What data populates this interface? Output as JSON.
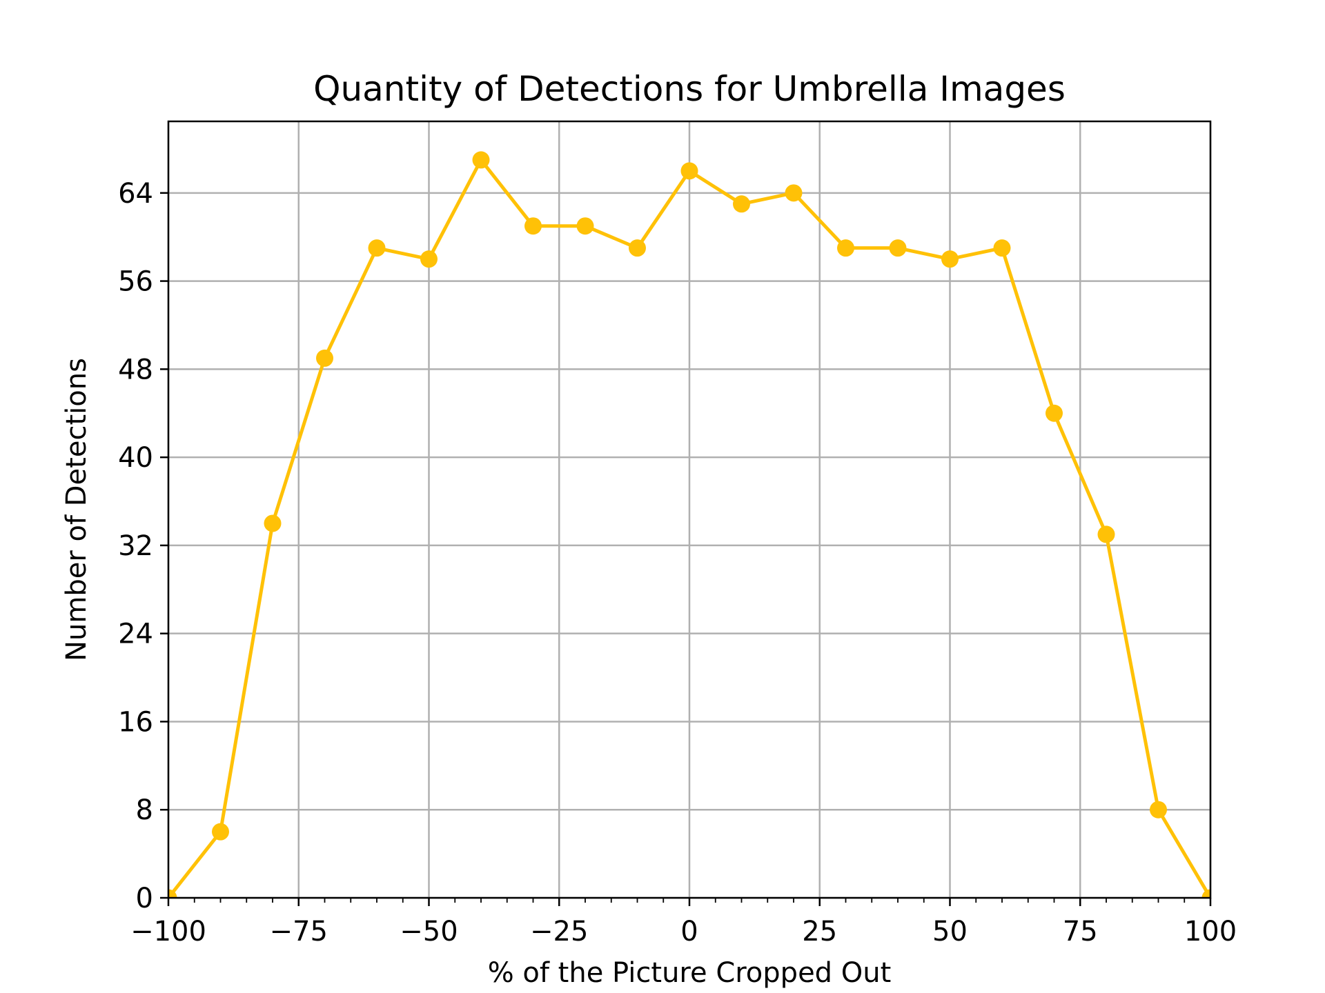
{
  "chart_data": {
    "type": "line",
    "title": "Quantity of Detections for Umbrella Images",
    "xlabel": "% of the Picture Cropped Out",
    "ylabel": "Number of Detections",
    "xlim": [
      -100,
      100
    ],
    "ylim": [
      0,
      70.5
    ],
    "xticks": [
      -100,
      -75,
      -50,
      -25,
      0,
      25,
      50,
      75,
      100
    ],
    "xtick_labels": [
      "−100",
      "−75",
      "−50",
      "−25",
      "0",
      "25",
      "50",
      "75",
      "100"
    ],
    "yticks": [
      0,
      8,
      16,
      24,
      32,
      40,
      48,
      56,
      64
    ],
    "ytick_labels": [
      "0",
      "8",
      "16",
      "24",
      "32",
      "40",
      "48",
      "56",
      "64"
    ],
    "grid": true,
    "color": "#ffc107",
    "series": [
      {
        "x": [
          -100,
          -90,
          -80,
          -70,
          -60,
          -50,
          -40,
          -30,
          -20,
          -10,
          0,
          10,
          20,
          30,
          40,
          50,
          60,
          70,
          80,
          90,
          100
        ],
        "y": [
          0,
          6,
          34,
          49,
          59,
          58,
          67,
          61,
          61,
          59,
          66,
          63,
          64,
          59,
          59,
          58,
          59,
          44,
          33,
          8,
          0
        ]
      }
    ]
  }
}
